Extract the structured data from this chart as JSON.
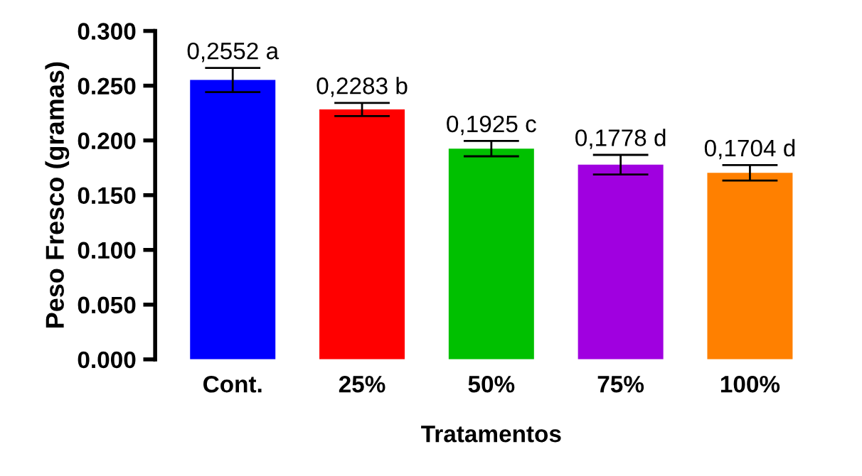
{
  "chart_data": {
    "type": "bar",
    "xlabel": "Tratamentos",
    "ylabel": "Peso Fresco (gramas)",
    "categories": [
      "Cont.",
      "25%",
      "50%",
      "75%",
      "100%"
    ],
    "values": [
      0.2552,
      0.2283,
      0.1925,
      0.1778,
      0.1704
    ],
    "colors": [
      "#0000ff",
      "#ff0000",
      "#00c000",
      "#a000e0",
      "#ff8000"
    ],
    "errors": [
      0.011,
      0.006,
      0.007,
      0.009,
      0.007
    ],
    "value_labels": [
      "0,2552 a",
      "0,2283 b",
      "0,1925 c",
      "0,1778 d",
      "0,1704 d"
    ],
    "ylim": [
      0,
      0.3
    ],
    "yticks": [
      {
        "value": 0,
        "label": "0.000"
      },
      {
        "value": 0.05,
        "label": "0.050"
      },
      {
        "value": 0.1,
        "label": "0.100"
      },
      {
        "value": 0.15,
        "label": "0.150"
      },
      {
        "value": 0.2,
        "label": "0.200"
      },
      {
        "value": 0.25,
        "label": "0.250"
      },
      {
        "value": 0.3,
        "label": "0.300"
      }
    ],
    "grid": false,
    "legend": false
  }
}
